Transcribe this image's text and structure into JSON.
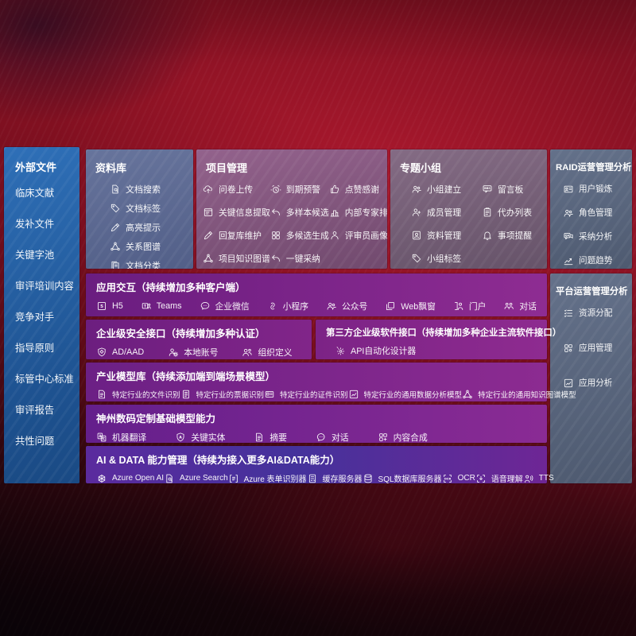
{
  "colors": {
    "background_red": "#8f1325",
    "sidebar_blue": "#2e6fb7",
    "panel_slate_blue": "#5d6b92",
    "panel_mauve": "#85597e",
    "panel_gray_blue": "#5a687e",
    "band_purple": "#7e2489",
    "band_indigo": "#45319c",
    "text": "#ffffff"
  },
  "sidebar": {
    "title": "外部文件",
    "items": [
      "临床文献",
      "发补文件",
      "关键字池",
      "审评培训内容",
      "竞争对手",
      "指导原则",
      "标管中心标准",
      "审评报告",
      "共性问题"
    ]
  },
  "panels": {
    "library": {
      "title": "资料库",
      "items": [
        {
          "icon": "doc-magnifier",
          "label": "文档搜索"
        },
        {
          "icon": "tag",
          "label": "文档标签"
        },
        {
          "icon": "pencil",
          "label": "高亮提示"
        },
        {
          "icon": "node-graph",
          "label": "关系图谱"
        },
        {
          "icon": "doc-stack",
          "label": "文档分类"
        }
      ]
    },
    "project": {
      "title": "项目管理",
      "columns": [
        [
          {
            "icon": "cloud-upload",
            "label": "问卷上传"
          },
          {
            "icon": "doc-extract",
            "label": "关键信息提取"
          },
          {
            "icon": "pencil",
            "label": "回复库维护"
          },
          {
            "icon": "node-graph",
            "label": "项目知识图谱"
          }
        ],
        [
          {
            "icon": "alarm-clock",
            "label": "到期预警"
          },
          {
            "icon": "reply-arrow",
            "label": "多样本候选"
          },
          {
            "icon": "grid-2x2",
            "label": "多候选生成"
          },
          {
            "icon": "reply-arrow",
            "label": "一键采纳"
          }
        ],
        [
          {
            "icon": "thumbs-up",
            "label": "点赞感谢"
          },
          {
            "icon": "ranking-podium",
            "label": "内部专家排名"
          },
          {
            "icon": "person",
            "label": "评审员画像"
          }
        ]
      ]
    },
    "groups": {
      "title": "专题小组",
      "columns": [
        [
          {
            "icon": "people",
            "label": "小组建立"
          },
          {
            "icon": "person-plus",
            "label": "成员管理"
          },
          {
            "icon": "photo-album",
            "label": "资料管理"
          },
          {
            "icon": "tag",
            "label": "小组标签"
          }
        ],
        [
          {
            "icon": "bbs-board",
            "label": "留言板"
          },
          {
            "icon": "clipboard",
            "label": "代办列表"
          },
          {
            "icon": "bell",
            "label": "事项提醒"
          }
        ]
      ]
    },
    "raid": {
      "title": "RAID运营管理分析",
      "items": [
        {
          "icon": "id-card",
          "label": "用户锻炼"
        },
        {
          "icon": "people",
          "label": "角色管理"
        },
        {
          "icon": "qa-bubbles",
          "label": "采纳分析"
        },
        {
          "icon": "trend-chart",
          "label": "问题趋势"
        }
      ]
    },
    "platform": {
      "title": "平台运营管理分析",
      "items": [
        {
          "icon": "check-list",
          "label": "资源分配"
        },
        {
          "icon": "app-grid",
          "label": "应用管理"
        },
        {
          "icon": "chart-box",
          "label": "应用分析"
        }
      ]
    }
  },
  "rows": {
    "interaction": {
      "title": "应用交互（持续增加多种客户端）",
      "items": [
        {
          "icon": "h5-logo",
          "label": "H5"
        },
        {
          "icon": "teams-logo",
          "label": "Teams"
        },
        {
          "icon": "chat-bubble",
          "label": "企业微信"
        },
        {
          "icon": "miniprogram-s",
          "label": "小程序"
        },
        {
          "icon": "people",
          "label": "公众号"
        },
        {
          "icon": "overlap-windows",
          "label": "Web飘窗"
        },
        {
          "icon": "person-door",
          "label": "门户"
        },
        {
          "icon": "people-dialog",
          "label": "对话"
        }
      ]
    },
    "security": {
      "title": "企业级安全接口（持续增加多种认证）",
      "items": [
        {
          "icon": "shield-diamond",
          "label": "AD/AAD"
        },
        {
          "icon": "person-gear",
          "label": "本地账号"
        },
        {
          "icon": "org-people",
          "label": "组织定义"
        }
      ]
    },
    "thirdparty": {
      "title": "第三方企业级软件接口（持续增加多种企业主流软件接口）",
      "items": [
        {
          "icon": "api-gear",
          "label": "API自动化设计器"
        }
      ]
    },
    "industry": {
      "title": "产业模型库（持续添加端到端场景模型）",
      "items": [
        {
          "icon": "doc-lines",
          "label": "特定行业的文件识别"
        },
        {
          "icon": "invoice-doc",
          "label": "特定行业的票据识别"
        },
        {
          "icon": "id-cert",
          "label": "特定行业的证件识别"
        },
        {
          "icon": "chart-box",
          "label": "特定行业的通用数据分析模型"
        },
        {
          "icon": "node-graph",
          "label": "特定行业的通用知识图谱模型"
        }
      ]
    },
    "base_model": {
      "title": "神州数码定制基础模型能力",
      "items": [
        {
          "icon": "translate-docs",
          "label": "机器翻译"
        },
        {
          "icon": "entity-shield",
          "label": "关键实体"
        },
        {
          "icon": "doc-lines",
          "label": "摘要"
        },
        {
          "icon": "chat-dots",
          "label": "对话"
        },
        {
          "icon": "grid-plus",
          "label": "内容合成"
        }
      ]
    },
    "ai_data": {
      "title": "AI & DATA 能力管理（持续为接入更多AI&DATA能力）",
      "items": [
        {
          "icon": "openai-flower",
          "label": "Azure Open AI"
        },
        {
          "icon": "doc-magnifier",
          "label": "Azure Search"
        },
        {
          "icon": "form-brackets",
          "label": "Azure 表单识别器"
        },
        {
          "icon": "server-doc",
          "label": "缓存服务器"
        },
        {
          "icon": "db-cylinder",
          "label": "SQL数据库服务器"
        },
        {
          "icon": "ocr-brackets",
          "label": "OCR"
        },
        {
          "icon": "speech-brackets",
          "label": "语音理解"
        },
        {
          "icon": "person-sound",
          "label": "TTS"
        }
      ]
    }
  }
}
